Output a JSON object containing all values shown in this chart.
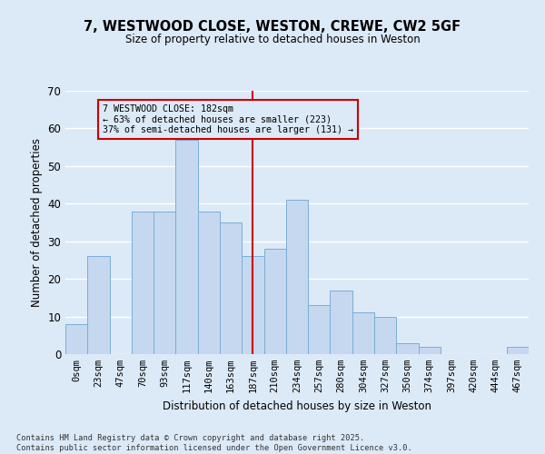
{
  "title": "7, WESTWOOD CLOSE, WESTON, CREWE, CW2 5GF",
  "subtitle": "Size of property relative to detached houses in Weston",
  "xlabel": "Distribution of detached houses by size in Weston",
  "ylabel": "Number of detached properties",
  "bar_labels": [
    "0sqm",
    "23sqm",
    "47sqm",
    "70sqm",
    "93sqm",
    "117sqm",
    "140sqm",
    "163sqm",
    "187sqm",
    "210sqm",
    "234sqm",
    "257sqm",
    "280sqm",
    "304sqm",
    "327sqm",
    "350sqm",
    "374sqm",
    "397sqm",
    "420sqm",
    "444sqm",
    "467sqm"
  ],
  "bar_values": [
    8,
    26,
    0,
    38,
    38,
    57,
    38,
    35,
    26,
    28,
    41,
    13,
    17,
    11,
    10,
    3,
    2,
    0,
    0,
    0,
    2
  ],
  "bar_color": "#c5d8f0",
  "bar_edge_color": "#7aaed6",
  "background_color": "#dce9f7",
  "grid_color": "#ffffff",
  "vline_x": 8,
  "vline_color": "#cc0000",
  "annotation_text": "7 WESTWOOD CLOSE: 182sqm\n← 63% of detached houses are smaller (223)\n37% of semi-detached houses are larger (131) →",
  "annotation_box_color": "#cc0000",
  "ylim": [
    0,
    70
  ],
  "yticks": [
    0,
    10,
    20,
    30,
    40,
    50,
    60,
    70
  ],
  "footer_line1": "Contains HM Land Registry data © Crown copyright and database right 2025.",
  "footer_line2": "Contains public sector information licensed under the Open Government Licence v3.0."
}
